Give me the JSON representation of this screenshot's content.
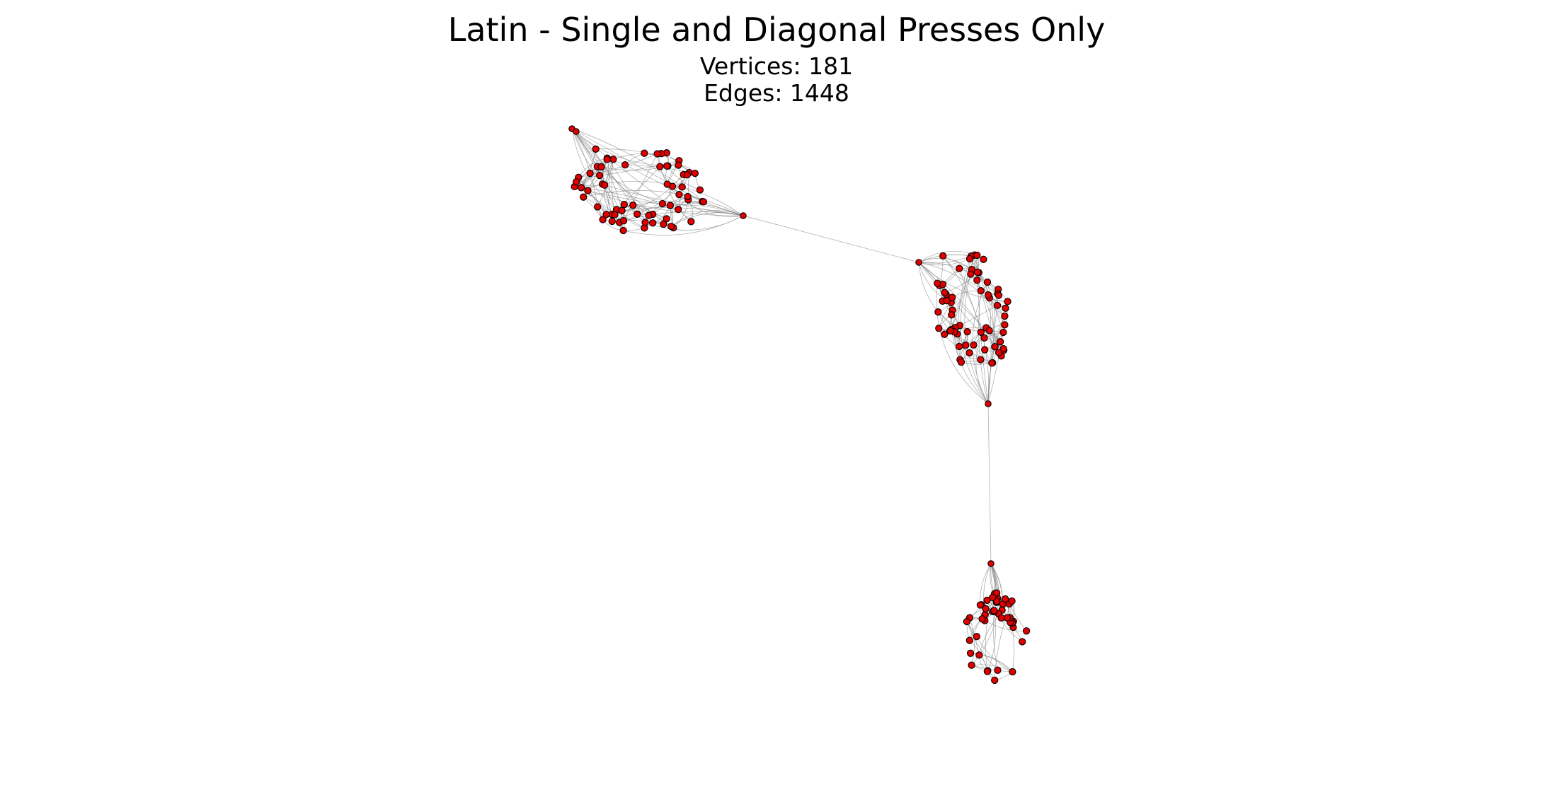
{
  "figure": {
    "title": "Latin - Single and Diagonal Presses Only",
    "vertices_label": "Vertices: 181",
    "edges_label": "Edges: 1448"
  },
  "graph": {
    "vertex_count": 181,
    "edge_count": 1448,
    "node_color": "#e00000",
    "node_outline_color": "#000000",
    "edge_color": "#888888",
    "background": "#ffffff",
    "clusters": [
      {
        "name": "upper-left-cluster"
      },
      {
        "name": "middle-right-cluster"
      },
      {
        "name": "lower-cluster"
      }
    ]
  }
}
